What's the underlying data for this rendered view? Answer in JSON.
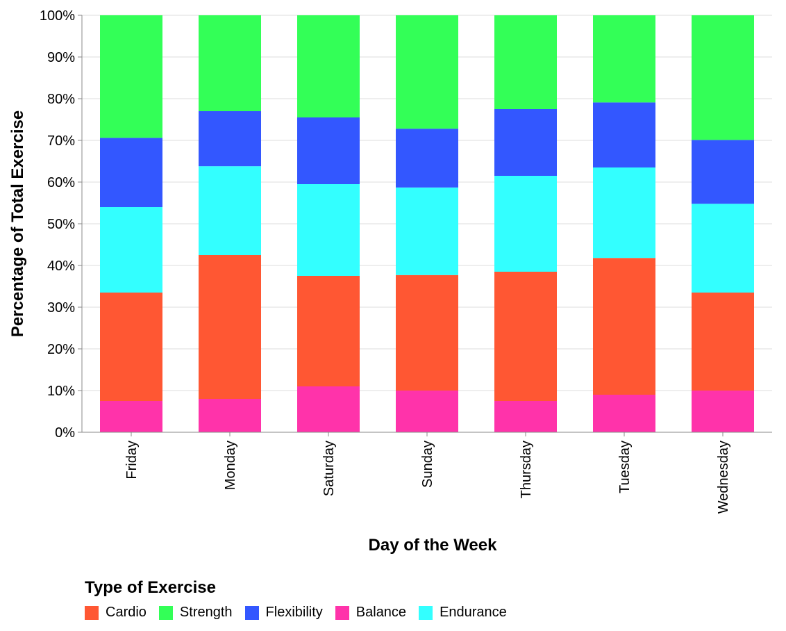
{
  "chart_data": {
    "type": "bar",
    "stacked": true,
    "normalized": true,
    "ylabel": "Percentage of Total Exercise",
    "xlabel": "Day of the Week",
    "ylim": [
      0,
      100
    ],
    "y_tick_labels": [
      "0%",
      "10%",
      "20%",
      "30%",
      "40%",
      "50%",
      "60%",
      "70%",
      "80%",
      "90%",
      "100%"
    ],
    "grid": true,
    "legend": {
      "title": "Type of Exercise",
      "placement": "bottom-left",
      "orient": "horizontal"
    },
    "categories": [
      "Friday",
      "Monday",
      "Saturday",
      "Sunday",
      "Thursday",
      "Tuesday",
      "Wednesday"
    ],
    "series": [
      {
        "name": "Balance",
        "color": "#ff33aa",
        "values": [
          7.5,
          8.0,
          11.0,
          10.0,
          7.5,
          9.0,
          10.0
        ]
      },
      {
        "name": "Cardio",
        "color": "#ff5733",
        "values": [
          26.0,
          34.5,
          26.5,
          27.7,
          31.0,
          32.8,
          23.5
        ]
      },
      {
        "name": "Endurance",
        "color": "#33ffff",
        "values": [
          20.5,
          21.3,
          22.0,
          21.0,
          23.0,
          21.7,
          21.3
        ]
      },
      {
        "name": "Flexibility",
        "color": "#3357ff",
        "values": [
          16.6,
          13.2,
          16.0,
          14.1,
          16.0,
          15.6,
          15.3
        ]
      },
      {
        "name": "Strength",
        "color": "#33ff57",
        "values": [
          29.4,
          23.0,
          24.5,
          27.2,
          22.5,
          20.9,
          29.9
        ]
      }
    ]
  },
  "legend": {
    "title": "Type of Exercise",
    "items": [
      {
        "label": "Cardio",
        "color": "#ff5733"
      },
      {
        "label": "Strength",
        "color": "#33ff57"
      },
      {
        "label": "Flexibility",
        "color": "#3357ff"
      },
      {
        "label": "Balance",
        "color": "#ff33aa"
      },
      {
        "label": "Endurance",
        "color": "#33ffff"
      }
    ]
  }
}
